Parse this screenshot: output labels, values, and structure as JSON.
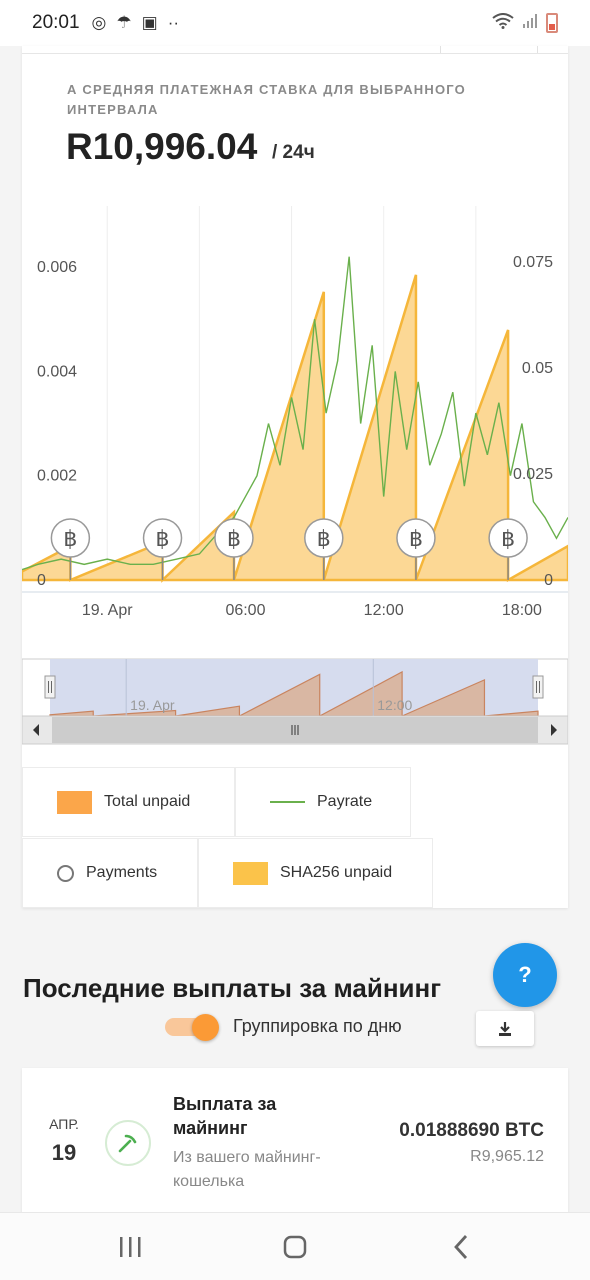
{
  "status_bar": {
    "time": "20:01"
  },
  "rate_card": {
    "label": "А СРЕДНЯЯ ПЛАТЕЖНАЯ СТАВКА ДЛЯ ВЫБРАННОГО ИНТЕРВАЛА",
    "value": "R10,996.04",
    "unit": "/ 24ч"
  },
  "chart_data": {
    "type": "area",
    "left_axis": {
      "ticks": [
        "0",
        "0.002",
        "0.004",
        "0.006"
      ],
      "range": [
        0,
        0.0065
      ]
    },
    "right_axis": {
      "ticks": [
        "0",
        "0.025",
        "0.05",
        "0.075"
      ],
      "range": [
        0,
        0.08
      ]
    },
    "x_ticks": [
      "19. Apr",
      "06:00",
      "12:00",
      "18:00"
    ],
    "x_range_hours": [
      -3.7,
      20.0
    ],
    "series": [
      {
        "name": "SHA256 unpaid",
        "axis": "right",
        "color": "#fbc34a",
        "x": [
          -3.7,
          -1.6,
          -1.6,
          2.4,
          2.4,
          5.5,
          5.5,
          9.4,
          9.4,
          13.4,
          13.4,
          17.4,
          17.4,
          20.0
        ],
        "values": [
          0.002,
          0.008,
          0.0,
          0.009,
          0.0,
          0.016,
          0.0,
          0.068,
          0.0,
          0.072,
          0.0,
          0.059,
          0.0,
          0.008
        ]
      },
      {
        "name": "Payrate",
        "axis": "left",
        "color": "#6ab04c",
        "x": [
          -3.7,
          -3.0,
          -2.0,
          -1.0,
          0.0,
          1.0,
          2.0,
          3.0,
          4.0,
          5.0,
          5.5,
          6.0,
          6.5,
          7.0,
          7.5,
          8.0,
          8.5,
          9.0,
          9.5,
          10.0,
          10.5,
          11.0,
          11.5,
          12.0,
          12.5,
          13.0,
          13.5,
          14.0,
          14.5,
          15.0,
          15.5,
          16.0,
          16.5,
          17.0,
          17.5,
          18.0,
          18.5,
          19.0,
          19.5,
          20.0
        ],
        "values": [
          0.0002,
          0.0003,
          0.0004,
          0.0003,
          0.0004,
          0.0003,
          0.0003,
          0.0004,
          0.0005,
          0.001,
          0.0012,
          0.0016,
          0.002,
          0.003,
          0.0022,
          0.0035,
          0.0025,
          0.005,
          0.0032,
          0.0042,
          0.0062,
          0.003,
          0.0045,
          0.0016,
          0.004,
          0.0025,
          0.0038,
          0.0022,
          0.0028,
          0.0036,
          0.0018,
          0.0032,
          0.0024,
          0.0034,
          0.002,
          0.003,
          0.0015,
          0.0012,
          0.0008,
          0.0012
        ]
      }
    ],
    "payments_markers_hours": [
      -1.6,
      2.4,
      5.5,
      9.4,
      13.4,
      17.4
    ],
    "navigator_ticks": [
      "19. Apr",
      "12:00"
    ]
  },
  "legend": [
    {
      "label": "Total unpaid",
      "color": "#fba64a",
      "kind": "box"
    },
    {
      "label": "Payrate",
      "color": "#6ab04c",
      "kind": "line"
    },
    {
      "label": "Payments",
      "color": "#777777",
      "kind": "circle"
    },
    {
      "label": "SHA256 unpaid",
      "color": "#fbc34a",
      "kind": "box"
    }
  ],
  "help_button": {
    "label": "?"
  },
  "payouts_section": {
    "title": "Последние выплаты за майнинг",
    "toggle_label": "Группировка по дню",
    "toggle_on": true
  },
  "payout_item": {
    "month": "АПР.",
    "day": "19",
    "title": "Выплата за майнинг",
    "subtitle": "Из вашего майнинг-кошелька",
    "amount": "0.01888690 BTC",
    "fiat": "R9,965.12"
  }
}
